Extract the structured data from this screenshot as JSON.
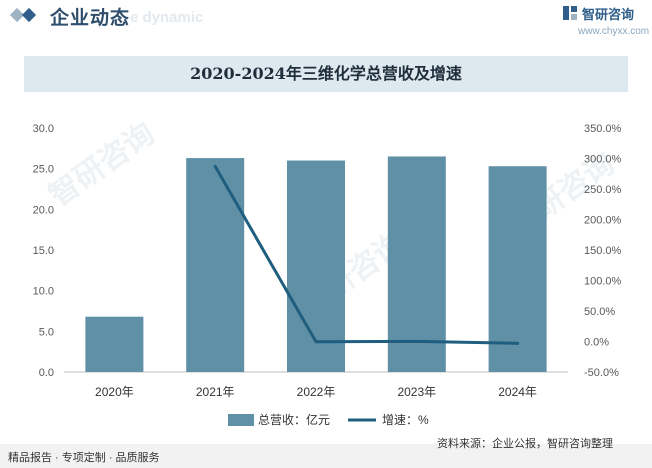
{
  "header": {
    "section_title": "企业动态",
    "section_subtitle": "e dynamic",
    "logo_text": "智研咨询",
    "logo_url": "www.chyxx.com"
  },
  "watermark": "智研咨询",
  "chart_data": {
    "type": "bar+line",
    "title": "2020-2024年三维化学总营收及增速",
    "categories": [
      "2020年",
      "2021年",
      "2022年",
      "2023年",
      "2024年"
    ],
    "series": [
      {
        "name": "总营收：亿元",
        "kind": "bar",
        "axis": "left",
        "values": [
          6.8,
          26.3,
          26.0,
          26.5,
          25.3
        ]
      },
      {
        "name": "增速：%",
        "kind": "line",
        "axis": "right",
        "values": [
          null,
          287.0,
          -0.5,
          0.3,
          -3.0
        ]
      }
    ],
    "y_left": {
      "min": 0,
      "max": 30,
      "ticks": [
        "0.0",
        "5.0",
        "10.0",
        "15.0",
        "20.0",
        "25.0",
        "30.0"
      ]
    },
    "y_right": {
      "min": -50,
      "max": 350,
      "ticks": [
        "-50.0%",
        "0.0%",
        "50.0%",
        "100.0%",
        "150.0%",
        "200.0%",
        "250.0%",
        "300.0%",
        "350.0%"
      ]
    },
    "colors": {
      "bar": "#5f90a6",
      "line": "#1f5e7f"
    },
    "legend": [
      "总营收：亿元",
      "增速：%"
    ]
  },
  "footer": {
    "left": "精品报告 · 专项定制 · 品质服务",
    "source": "资料来源：企业公报，智研咨询整理"
  }
}
